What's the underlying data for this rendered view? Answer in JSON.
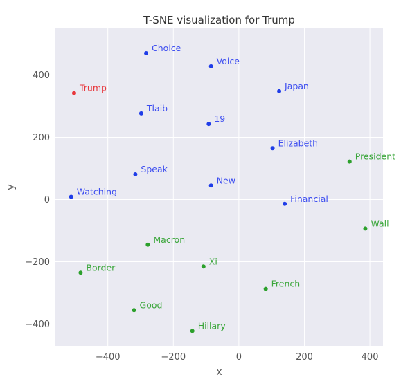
{
  "chart_data": {
    "type": "scatter",
    "title": "T-SNE visualization for Trump",
    "xlabel": "x",
    "ylabel": "y",
    "xlim": [
      -560,
      440
    ],
    "ylim": [
      -470,
      550
    ],
    "xticks": [
      -400,
      -200,
      0,
      200,
      400
    ],
    "yticks": [
      -400,
      -200,
      0,
      200,
      400
    ],
    "xtick_labels": [
      "−400",
      "−200",
      "0",
      "200",
      "400"
    ],
    "ytick_labels": [
      "−400",
      "−200",
      "0",
      "200",
      "400"
    ],
    "grid": true,
    "colors": {
      "background": "#eaeaf2",
      "grid": "#ffffff",
      "red": "#e8383d",
      "blue": "#1f3de8",
      "green": "#2ca02c",
      "label_red": "#e8383d",
      "label_blue": "#3b4cf0",
      "label_green": "#3aa63a"
    },
    "points": [
      {
        "label": "Trump",
        "x": -503,
        "y": 342,
        "group": "red"
      },
      {
        "label": "Choice",
        "x": -283,
        "y": 470,
        "group": "blue"
      },
      {
        "label": "Voice",
        "x": -85,
        "y": 428,
        "group": "blue"
      },
      {
        "label": "Japan",
        "x": 123,
        "y": 348,
        "group": "blue"
      },
      {
        "label": "Tlaib",
        "x": -298,
        "y": 277,
        "group": "blue"
      },
      {
        "label": "19",
        "x": -92,
        "y": 243,
        "group": "blue"
      },
      {
        "label": "Elizabeth",
        "x": 103,
        "y": 165,
        "group": "blue"
      },
      {
        "label": "Speak",
        "x": -316,
        "y": 81,
        "group": "blue"
      },
      {
        "label": "New",
        "x": -85,
        "y": 45,
        "group": "blue"
      },
      {
        "label": "Watching",
        "x": -512,
        "y": 9,
        "group": "blue"
      },
      {
        "label": "Financial",
        "x": 140,
        "y": -14,
        "group": "blue"
      },
      {
        "label": "President",
        "x": 338,
        "y": 122,
        "group": "green"
      },
      {
        "label": "Wall",
        "x": 386,
        "y": -93,
        "group": "green"
      },
      {
        "label": "Macron",
        "x": -278,
        "y": -145,
        "group": "green"
      },
      {
        "label": "Xi",
        "x": -108,
        "y": -215,
        "group": "green"
      },
      {
        "label": "Border",
        "x": -483,
        "y": -235,
        "group": "green"
      },
      {
        "label": "French",
        "x": 82,
        "y": -287,
        "group": "green"
      },
      {
        "label": "Good",
        "x": -320,
        "y": -355,
        "group": "green"
      },
      {
        "label": "Hillary",
        "x": -142,
        "y": -422,
        "group": "green"
      }
    ]
  }
}
